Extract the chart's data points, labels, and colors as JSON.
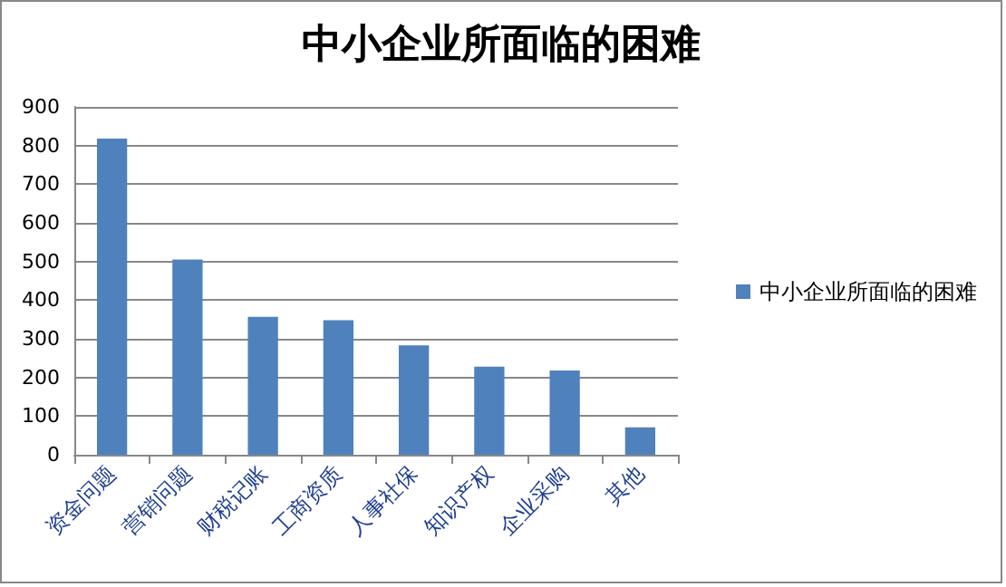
{
  "chart_data": {
    "type": "bar",
    "title": "中小企业所面临的困难",
    "categories": [
      "资金问题",
      "营销问题",
      "财税记账",
      "工商资质",
      "人事社保",
      "知识产权",
      "企业采购",
      "其他"
    ],
    "series": [
      {
        "name": "中小企业所面临的困难",
        "color": "#4f81bd",
        "values": [
          818,
          505,
          357,
          348,
          283,
          228,
          218,
          71
        ]
      }
    ],
    "ylim": [
      0,
      900
    ],
    "yticks": [
      0,
      100,
      200,
      300,
      400,
      500,
      600,
      700,
      800,
      900
    ],
    "grid": "y",
    "legend": "right"
  }
}
